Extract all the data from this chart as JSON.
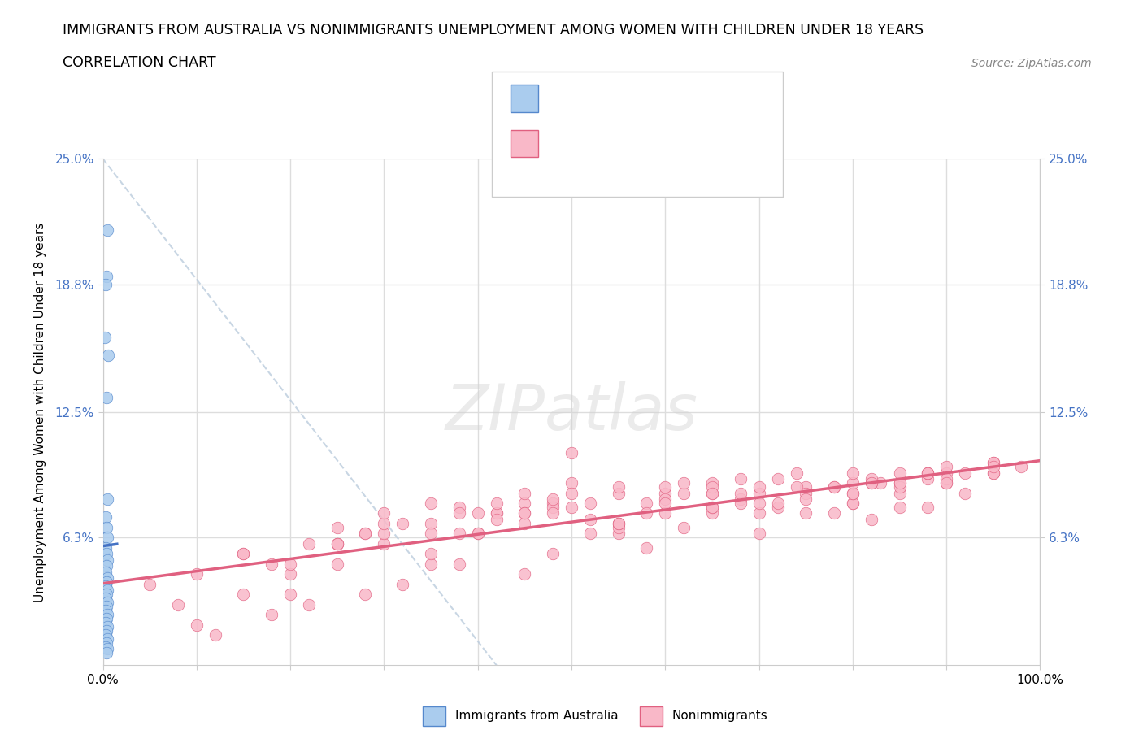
{
  "title_line1": "IMMIGRANTS FROM AUSTRALIA VS NONIMMIGRANTS UNEMPLOYMENT AMONG WOMEN WITH CHILDREN UNDER 18 YEARS",
  "title_line2": "CORRELATION CHART",
  "source_text": "Source: ZipAtlas.com",
  "ylabel": "Unemployment Among Women with Children Under 18 years",
  "xlim": [
    0,
    100
  ],
  "ylim": [
    0,
    25
  ],
  "grid_color": "#dddddd",
  "background_color": "#ffffff",
  "blue_color": "#aaccee",
  "blue_edge_color": "#5588cc",
  "blue_line_color": "#4472c4",
  "pink_color": "#f9b8c8",
  "pink_edge_color": "#e06080",
  "pink_line_color": "#e06080",
  "dash_color": "#bbccdd",
  "legend_label1": "Immigrants from Australia",
  "legend_label2": "Nonimmigrants",
  "blue_x": [
    0.5,
    0.4,
    0.3,
    0.2,
    0.6,
    0.4,
    0.5,
    0.3,
    0.4,
    0.5,
    0.3,
    0.4,
    0.5,
    0.4,
    0.3,
    0.5,
    0.4,
    0.3,
    0.5,
    0.4,
    0.3,
    0.5,
    0.4,
    0.3,
    0.5,
    0.4,
    0.3,
    0.5,
    0.4,
    0.3,
    0.5,
    0.4,
    0.3,
    0.5,
    0.4
  ],
  "blue_y": [
    21.5,
    19.2,
    18.8,
    16.2,
    15.3,
    13.2,
    8.2,
    7.3,
    6.8,
    6.3,
    5.8,
    5.5,
    5.2,
    4.9,
    4.6,
    4.3,
    4.1,
    3.9,
    3.7,
    3.5,
    3.3,
    3.1,
    2.9,
    2.7,
    2.5,
    2.3,
    2.1,
    1.9,
    1.7,
    1.5,
    1.3,
    1.1,
    0.9,
    0.8,
    0.6
  ],
  "pink_x": [
    8,
    10,
    12,
    15,
    18,
    20,
    22,
    25,
    28,
    30,
    32,
    35,
    38,
    40,
    42,
    45,
    48,
    50,
    52,
    55,
    58,
    60,
    62,
    65,
    68,
    70,
    72,
    75,
    78,
    80,
    82,
    85,
    88,
    90,
    92,
    95,
    98,
    5,
    15,
    25,
    35,
    45,
    55,
    65,
    75,
    85,
    95,
    20,
    30,
    40,
    50,
    60,
    70,
    80,
    90,
    10,
    35,
    55,
    75,
    45,
    65,
    85,
    25,
    50,
    70,
    90,
    15,
    40,
    60,
    80,
    55,
    70,
    85,
    95,
    30,
    50,
    65,
    80,
    20,
    42,
    58,
    74,
    88,
    35,
    52,
    68,
    83,
    45,
    60,
    78,
    30,
    48,
    65,
    82,
    38,
    55,
    72,
    88,
    25,
    45,
    62,
    80,
    95,
    35,
    55,
    72,
    88,
    28,
    48,
    65,
    82,
    42,
    60,
    78,
    92,
    18,
    38,
    58,
    75,
    90,
    22,
    45,
    68,
    85,
    32,
    52,
    70,
    88,
    48,
    65,
    82,
    95,
    25,
    42,
    62,
    80,
    38,
    55,
    74,
    90,
    28,
    48,
    68,
    85
  ],
  "pink_y": [
    3.0,
    2.0,
    1.5,
    3.5,
    2.5,
    4.5,
    3.0,
    5.0,
    3.5,
    6.0,
    4.0,
    8.0,
    5.0,
    6.5,
    7.5,
    4.5,
    5.5,
    10.5,
    6.5,
    7.0,
    5.8,
    8.5,
    6.8,
    7.5,
    8.2,
    6.5,
    7.8,
    8.8,
    7.5,
    8.0,
    7.2,
    8.5,
    7.8,
    9.0,
    8.5,
    9.5,
    9.8,
    4.0,
    5.5,
    6.0,
    7.0,
    8.0,
    6.5,
    7.8,
    8.5,
    9.0,
    10.0,
    3.5,
    6.5,
    7.5,
    9.0,
    8.8,
    7.5,
    8.0,
    9.5,
    4.5,
    5.0,
    6.8,
    7.5,
    8.5,
    9.0,
    8.8,
    6.0,
    7.8,
    8.5,
    9.2,
    5.5,
    6.5,
    7.5,
    8.5,
    7.0,
    8.0,
    9.0,
    9.5,
    7.0,
    8.5,
    7.8,
    8.5,
    5.0,
    7.5,
    8.0,
    8.8,
    9.2,
    6.5,
    7.2,
    8.0,
    9.0,
    7.0,
    8.2,
    8.8,
    7.5,
    8.0,
    8.5,
    9.0,
    7.8,
    8.5,
    9.2,
    9.5,
    6.0,
    7.5,
    8.5,
    9.0,
    10.0,
    5.5,
    7.0,
    8.0,
    9.5,
    6.5,
    7.8,
    8.8,
    9.2,
    7.2,
    8.0,
    8.8,
    9.5,
    5.0,
    6.5,
    7.5,
    8.2,
    9.0,
    6.0,
    7.5,
    8.5,
    9.5,
    7.0,
    8.0,
    8.8,
    9.5,
    7.5,
    8.5,
    9.0,
    9.8,
    6.8,
    8.0,
    9.0,
    9.5,
    7.5,
    8.8,
    9.5,
    9.8,
    6.5,
    8.2,
    9.2,
    7.8
  ]
}
